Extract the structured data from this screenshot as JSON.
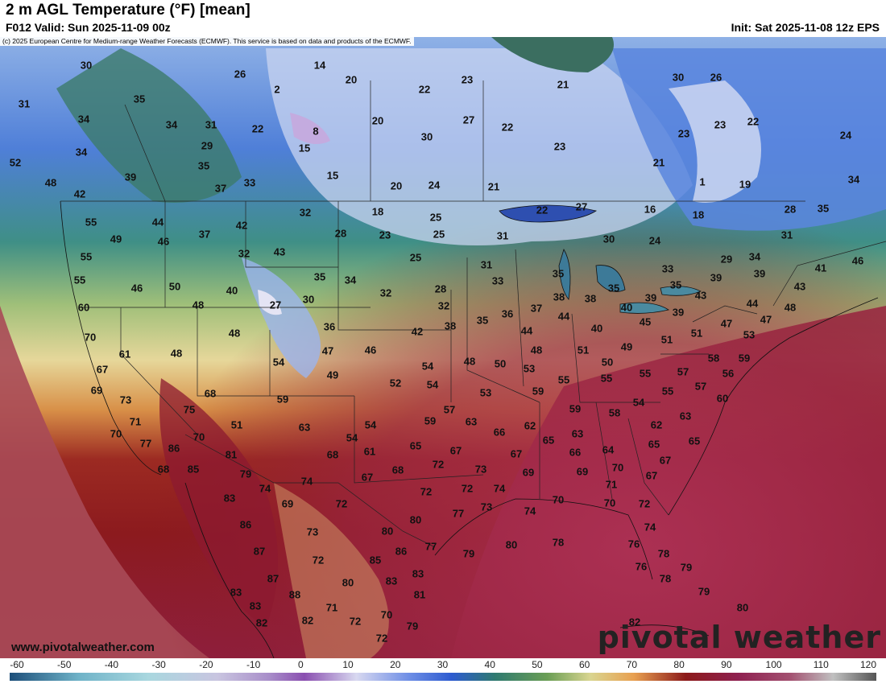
{
  "header": {
    "title": "2 m AGL Temperature (°F) [mean]",
    "valid": "F012 Valid: Sun 2025-11-09 00z",
    "init": "Init: Sat 2025-11-08 12z EPS"
  },
  "copyright": "(c) 2025 European Centre for Medium-range Weather Forecasts (ECMWF). This service is based on data and products of the ECMWF.",
  "website": "www.pivotalweather.com",
  "logo": "pivotal weather",
  "colorbar": {
    "ticks": [
      "-60",
      "-50",
      "-40",
      "-30",
      "-20",
      "-10",
      "0",
      "10",
      "20",
      "30",
      "40",
      "50",
      "60",
      "70",
      "80",
      "90",
      "100",
      "110",
      "120"
    ],
    "colors": [
      "#1d4f7a",
      "#3a7fa5",
      "#6fb3c8",
      "#a9d7df",
      "#c9c5e0",
      "#a88dc9",
      "#8a4fb0",
      "#6a3aa0",
      "#d8d8f0",
      "#6f8fe6",
      "#2d5bd0",
      "#2f7a70",
      "#6a9e55",
      "#d9d590",
      "#e8a050",
      "#8c1a1a",
      "#8f2050",
      "#a35070",
      "#c0c0c0",
      "#555555"
    ]
  },
  "labels": [
    [
      "30",
      107,
      82
    ],
    [
      "14",
      397,
      82
    ],
    [
      "20",
      436,
      100
    ],
    [
      "26",
      298,
      93
    ],
    [
      "2",
      344,
      112
    ],
    [
      "22",
      527,
      112
    ],
    [
      "23",
      580,
      100
    ],
    [
      "21",
      699,
      106
    ],
    [
      "30",
      842,
      97
    ],
    [
      "26",
      889,
      97
    ],
    [
      "31",
      30,
      130
    ],
    [
      "35",
      173,
      124
    ],
    [
      "34",
      104,
      149
    ],
    [
      "34",
      213,
      156
    ],
    [
      "31",
      262,
      156
    ],
    [
      "22",
      320,
      161
    ],
    [
      "8",
      392,
      164
    ],
    [
      "15",
      378,
      185
    ],
    [
      "20",
      469,
      151
    ],
    [
      "30",
      530,
      171
    ],
    [
      "27",
      582,
      150
    ],
    [
      "22",
      630,
      159
    ],
    [
      "23",
      849,
      167
    ],
    [
      "23",
      894,
      156
    ],
    [
      "22",
      935,
      152
    ],
    [
      "24",
      1050,
      169
    ],
    [
      "29",
      257,
      182
    ],
    [
      "34",
      101,
      190
    ],
    [
      "23",
      695,
      183
    ],
    [
      "21",
      818,
      203
    ],
    [
      "52",
      19,
      203
    ],
    [
      "39",
      162,
      221
    ],
    [
      "35",
      253,
      207
    ],
    [
      "15",
      413,
      219
    ],
    [
      "48",
      63,
      228
    ],
    [
      "37",
      274,
      235
    ],
    [
      "33",
      310,
      228
    ],
    [
      "20",
      492,
      232
    ],
    [
      "24",
      539,
      231
    ],
    [
      "21",
      613,
      233
    ],
    [
      "1",
      872,
      227
    ],
    [
      "19",
      925,
      230
    ],
    [
      "34",
      1060,
      224
    ],
    [
      "42",
      99,
      242
    ],
    [
      "27",
      722,
      258
    ],
    [
      "22",
      673,
      262
    ],
    [
      "16",
      807,
      261
    ],
    [
      "18",
      867,
      268
    ],
    [
      "28",
      981,
      261
    ],
    [
      "35",
      1022,
      260
    ],
    [
      "32",
      379,
      265
    ],
    [
      "18",
      469,
      264
    ],
    [
      "25",
      541,
      271
    ],
    [
      "55",
      113,
      277
    ],
    [
      "44",
      196,
      277
    ],
    [
      "42",
      300,
      281
    ],
    [
      "49",
      144,
      298
    ],
    [
      "46",
      203,
      301
    ],
    [
      "37",
      254,
      292
    ],
    [
      "28",
      423,
      291
    ],
    [
      "23",
      478,
      293
    ],
    [
      "25",
      545,
      292
    ],
    [
      "31",
      624,
      294
    ],
    [
      "30",
      756,
      298
    ],
    [
      "24",
      813,
      300
    ],
    [
      "31",
      977,
      293
    ],
    [
      "55",
      107,
      320
    ],
    [
      "32",
      303,
      316
    ],
    [
      "43",
      347,
      314
    ],
    [
      "25",
      516,
      321
    ],
    [
      "31",
      604,
      330
    ],
    [
      "29",
      902,
      323
    ],
    [
      "34",
      937,
      320
    ],
    [
      "41",
      1019,
      334
    ],
    [
      "46",
      1065,
      325
    ],
    [
      "55",
      99,
      349
    ],
    [
      "35",
      397,
      345
    ],
    [
      "34",
      435,
      349
    ],
    [
      "33",
      618,
      350
    ],
    [
      "35",
      693,
      341
    ],
    [
      "33",
      829,
      335
    ],
    [
      "39",
      889,
      346
    ],
    [
      "39",
      943,
      341
    ],
    [
      "43",
      993,
      357
    ],
    [
      "46",
      170,
      359
    ],
    [
      "50",
      217,
      357
    ],
    [
      "40",
      288,
      362
    ],
    [
      "32",
      479,
      365
    ],
    [
      "28",
      547,
      360
    ],
    [
      "38",
      694,
      370
    ],
    [
      "38",
      733,
      372
    ],
    [
      "35",
      762,
      359
    ],
    [
      "35",
      839,
      355
    ],
    [
      "43",
      870,
      368
    ],
    [
      "60",
      104,
      383
    ],
    [
      "48",
      246,
      380
    ],
    [
      "27",
      342,
      380
    ],
    [
      "30",
      383,
      373
    ],
    [
      "32",
      551,
      381
    ],
    [
      "36",
      630,
      391
    ],
    [
      "37",
      666,
      384
    ],
    [
      "40",
      778,
      383
    ],
    [
      "39",
      808,
      371
    ],
    [
      "44",
      934,
      378
    ],
    [
      "48",
      981,
      383
    ],
    [
      "35",
      599,
      399
    ],
    [
      "44",
      700,
      394
    ],
    [
      "39",
      842,
      389
    ],
    [
      "45",
      801,
      401
    ],
    [
      "47",
      902,
      403
    ],
    [
      "47",
      951,
      398
    ],
    [
      "48",
      291,
      415
    ],
    [
      "36",
      409,
      407
    ],
    [
      "42",
      518,
      413
    ],
    [
      "38",
      559,
      406
    ],
    [
      "44",
      654,
      412
    ],
    [
      "40",
      741,
      409
    ],
    [
      "51",
      865,
      415
    ],
    [
      "51",
      828,
      423
    ],
    [
      "53",
      930,
      417
    ],
    [
      "70",
      112,
      420
    ],
    [
      "61",
      155,
      441
    ],
    [
      "48",
      219,
      440
    ],
    [
      "47",
      407,
      437
    ],
    [
      "46",
      460,
      436
    ],
    [
      "48",
      583,
      450
    ],
    [
      "48",
      666,
      436
    ],
    [
      "51",
      724,
      436
    ],
    [
      "49",
      778,
      432
    ],
    [
      "54",
      346,
      451
    ],
    [
      "58",
      886,
      446
    ],
    [
      "59",
      924,
      446
    ],
    [
      "67",
      127,
      460
    ],
    [
      "54",
      531,
      456
    ],
    [
      "50",
      621,
      453
    ],
    [
      "53",
      657,
      459
    ],
    [
      "50",
      754,
      451
    ],
    [
      "55",
      700,
      473
    ],
    [
      "55",
      753,
      471
    ],
    [
      "55",
      801,
      465
    ],
    [
      "57",
      848,
      463
    ],
    [
      "56",
      904,
      465
    ],
    [
      "49",
      413,
      467
    ],
    [
      "69",
      120,
      486
    ],
    [
      "52",
      491,
      477
    ],
    [
      "54",
      537,
      479
    ],
    [
      "53",
      603,
      489
    ],
    [
      "59",
      668,
      487
    ],
    [
      "55",
      829,
      487
    ],
    [
      "57",
      870,
      481
    ],
    [
      "68",
      261,
      490
    ],
    [
      "59",
      351,
      497
    ],
    [
      "60",
      897,
      496
    ],
    [
      "73",
      156,
      498
    ],
    [
      "75",
      235,
      510
    ],
    [
      "57",
      558,
      510
    ],
    [
      "59",
      714,
      509
    ],
    [
      "58",
      763,
      514
    ],
    [
      "54",
      793,
      501
    ],
    [
      "63",
      851,
      518
    ],
    [
      "71",
      168,
      525
    ],
    [
      "51",
      294,
      529
    ],
    [
      "63",
      378,
      532
    ],
    [
      "54",
      460,
      529
    ],
    [
      "59",
      534,
      524
    ],
    [
      "63",
      585,
      525
    ],
    [
      "70",
      144,
      540
    ],
    [
      "77",
      181,
      552
    ],
    [
      "70",
      247,
      544
    ],
    [
      "54",
      437,
      545
    ],
    [
      "62",
      658,
      530
    ],
    [
      "66",
      620,
      538
    ],
    [
      "65",
      681,
      548
    ],
    [
      "63",
      717,
      540
    ],
    [
      "64",
      755,
      560
    ],
    [
      "62",
      815,
      529
    ],
    [
      "65",
      812,
      553
    ],
    [
      "65",
      862,
      549
    ],
    [
      "86",
      216,
      558
    ],
    [
      "81",
      287,
      566
    ],
    [
      "68",
      413,
      566
    ],
    [
      "61",
      459,
      562
    ],
    [
      "65",
      516,
      555
    ],
    [
      "67",
      566,
      561
    ],
    [
      "72",
      544,
      578
    ],
    [
      "73",
      597,
      584
    ],
    [
      "67",
      641,
      565
    ],
    [
      "66",
      714,
      563
    ],
    [
      "67",
      826,
      573
    ],
    [
      "68",
      203,
      584
    ],
    [
      "85",
      240,
      584
    ],
    [
      "79",
      305,
      590
    ],
    [
      "68",
      494,
      585
    ],
    [
      "67",
      456,
      594
    ],
    [
      "69",
      656,
      588
    ],
    [
      "69",
      723,
      587
    ],
    [
      "70",
      767,
      582
    ],
    [
      "67",
      809,
      592
    ],
    [
      "74",
      329,
      608
    ],
    [
      "74",
      381,
      599
    ],
    [
      "72",
      529,
      612
    ],
    [
      "72",
      580,
      608
    ],
    [
      "74",
      620,
      608
    ],
    [
      "71",
      759,
      603
    ],
    [
      "83",
      285,
      620
    ],
    [
      "69",
      357,
      627
    ],
    [
      "72",
      424,
      627
    ],
    [
      "73",
      604,
      631
    ],
    [
      "74",
      658,
      636
    ],
    [
      "70",
      693,
      622
    ],
    [
      "70",
      757,
      626
    ],
    [
      "72",
      800,
      627
    ],
    [
      "77",
      569,
      639
    ],
    [
      "80",
      516,
      647
    ],
    [
      "86",
      305,
      653
    ],
    [
      "73",
      388,
      662
    ],
    [
      "80",
      481,
      661
    ],
    [
      "74",
      807,
      656
    ],
    [
      "87",
      322,
      686
    ],
    [
      "86",
      498,
      686
    ],
    [
      "77",
      535,
      680
    ],
    [
      "79",
      582,
      689
    ],
    [
      "80",
      635,
      678
    ],
    [
      "78",
      693,
      675
    ],
    [
      "76",
      787,
      677
    ],
    [
      "78",
      824,
      689
    ],
    [
      "72",
      395,
      697
    ],
    [
      "85",
      466,
      697
    ],
    [
      "87",
      339,
      720
    ],
    [
      "80",
      432,
      725
    ],
    [
      "83",
      486,
      723
    ],
    [
      "83",
      519,
      714
    ],
    [
      "76",
      796,
      705
    ],
    [
      "78",
      826,
      720
    ],
    [
      "79",
      852,
      706
    ],
    [
      "83",
      293,
      737
    ],
    [
      "88",
      366,
      740
    ],
    [
      "81",
      521,
      740
    ],
    [
      "79",
      874,
      736
    ],
    [
      "83",
      317,
      754
    ],
    [
      "71",
      412,
      756
    ],
    [
      "70",
      480,
      765
    ],
    [
      "80",
      922,
      756
    ],
    [
      "82",
      325,
      775
    ],
    [
      "82",
      382,
      772
    ],
    [
      "72",
      441,
      773
    ],
    [
      "79",
      512,
      779
    ],
    [
      "82",
      788,
      774
    ],
    [
      "72",
      474,
      794
    ]
  ]
}
